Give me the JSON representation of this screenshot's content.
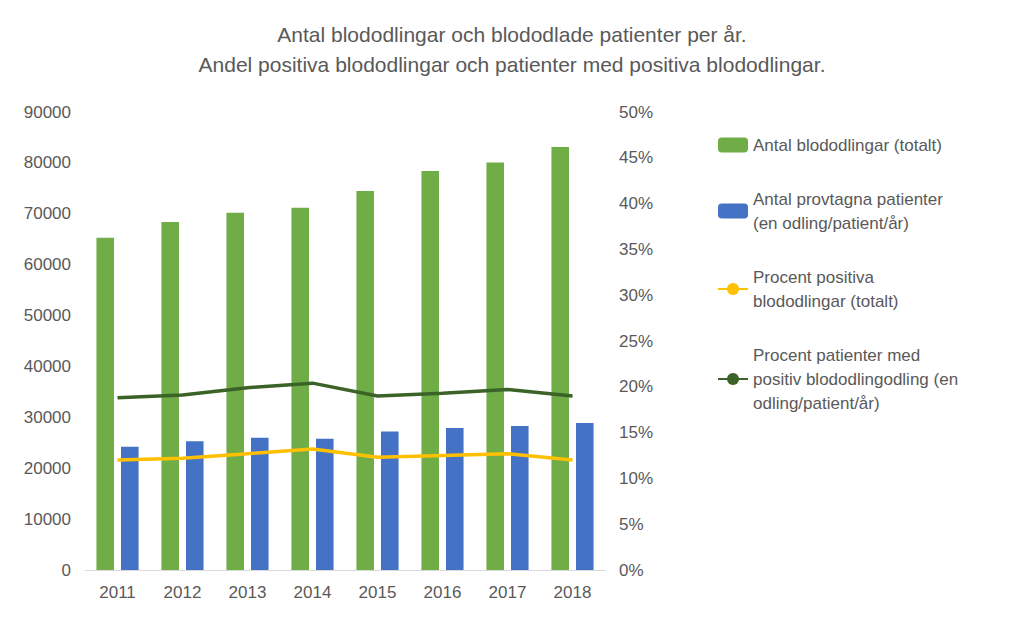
{
  "chart_data": {
    "type": "bar",
    "title": "Antal blododlingar och blododlade patienter per år.\nAndel positiva blododlingar och patienter med positiva blododlingar.",
    "categories": [
      "2011",
      "2012",
      "2013",
      "2014",
      "2015",
      "2016",
      "2017",
      "2018"
    ],
    "series": [
      {
        "name": "Antal blododlingar (totalt)",
        "type": "bar",
        "color": "#70ad47",
        "values": [
          65300,
          68400,
          70200,
          71200,
          74500,
          78400,
          80100,
          83100
        ]
      },
      {
        "name": "Antal provtagna patienter (en odling/patient/år)",
        "type": "bar",
        "color": "#4472c4",
        "values": [
          24200,
          25300,
          26000,
          25800,
          27200,
          27900,
          28300,
          28900
        ]
      },
      {
        "name": "Procent positiva blododlingar (totalt)",
        "type": "line",
        "color": "#ffc000",
        "axis": "y2",
        "values": [
          12.0,
          12.2,
          12.7,
          13.2,
          12.3,
          12.5,
          12.7,
          12.0
        ]
      },
      {
        "name": "Procent patienter med positiv blododlingodling (en odling/patient/år)",
        "type": "line",
        "color": "#3b6328",
        "axis": "y2",
        "values": [
          18.8,
          19.1,
          19.9,
          20.4,
          19.0,
          19.3,
          19.7,
          19.0
        ]
      }
    ],
    "ylim": [
      0,
      90000
    ],
    "yticks": [
      0,
      10000,
      20000,
      30000,
      40000,
      50000,
      60000,
      70000,
      80000,
      90000
    ],
    "y2lim": [
      0,
      50
    ],
    "y2ticks": [
      {
        "value": 0,
        "label": "0%"
      },
      {
        "value": 5,
        "label": "5%"
      },
      {
        "value": 10,
        "label": "10%"
      },
      {
        "value": 15,
        "label": "15%"
      },
      {
        "value": 20,
        "label": "20%"
      },
      {
        "value": 25,
        "label": "25%"
      },
      {
        "value": 30,
        "label": "30%"
      },
      {
        "value": 35,
        "label": "35%"
      },
      {
        "value": 40,
        "label": "40%"
      },
      {
        "value": 45,
        "label": "45%"
      },
      {
        "value": 50,
        "label": "50%"
      }
    ],
    "grid": false,
    "legend": "right"
  }
}
